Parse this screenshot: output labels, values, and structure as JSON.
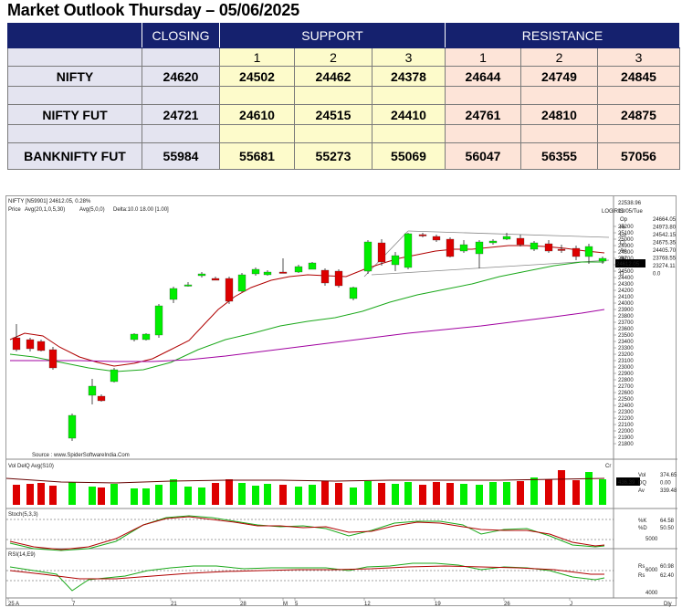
{
  "title": "Market Outlook Thursday – 05/06/2025",
  "table": {
    "headers": {
      "closing": "CLOSING",
      "support": "SUPPORT",
      "resistance": "RESISTANCE"
    },
    "level_numbers": [
      "1",
      "2",
      "3"
    ],
    "rows": [
      {
        "name": "NIFTY",
        "closing": "24620",
        "support": [
          "24502",
          "24462",
          "24378"
        ],
        "resistance": [
          "24644",
          "24749",
          "24845"
        ]
      },
      {
        "name": "NIFTY FUT",
        "closing": "24721",
        "support": [
          "24610",
          "24515",
          "24410"
        ],
        "resistance": [
          "24761",
          "24810",
          "24875"
        ]
      },
      {
        "name": "BANKNIFTY FUT",
        "closing": "55984",
        "support": [
          "55681",
          "55273",
          "55069"
        ],
        "resistance": [
          "56047",
          "56355",
          "57056"
        ]
      }
    ]
  },
  "chart": {
    "header_line1": "NIFTY [N59901] 24612.05, 0.28%",
    "header_line2_price": "Price",
    "header_line2_avg1": "Avg(20,1,0,5,30)",
    "header_line2_avg2": "Avg(5,0,0)",
    "header_line2_delta": "Delta:10.0 18.00 [1.00]",
    "log_label": "LOG",
    "irs_label": "IRIS",
    "top_right_value": "22538.96",
    "top_right_date": "13/05/Tue",
    "ohlc": [
      {
        "label": "Op",
        "value": "24664.05",
        "color": "#1aa81a"
      },
      {
        "label": "Hi",
        "value": "24973.80",
        "color": "#d00000"
      },
      {
        "label": "Lo",
        "value": "24542.15",
        "color": "#999999"
      },
      {
        "label": "Cl",
        "value": "24675.35",
        "color": "#999999"
      },
      {
        "label": "Av",
        "value": "24405.70",
        "color": "#d00000"
      },
      {
        "label": "Av",
        "value": "23768.55",
        "color": "#1aa81a"
      },
      {
        "label": "Av",
        "value": "23274.11",
        "color": "#cc00cc"
      },
      {
        "label": "D",
        "value": "0.0",
        "color": "#999999"
      }
    ],
    "last_price_tag": "24612.05",
    "price_axis": [
      "25200",
      "25100",
      "25000",
      "24900",
      "24800",
      "24700",
      "24600",
      "24500",
      "24400",
      "24300",
      "24200",
      "24100",
      "24000",
      "23900",
      "23800",
      "23700",
      "23600",
      "23500",
      "23400",
      "23300",
      "23200",
      "23100",
      "23000",
      "22900",
      "22800",
      "22700",
      "22600",
      "22500",
      "22400",
      "22300",
      "22200",
      "22100",
      "22000",
      "21900",
      "21800"
    ],
    "source": "Source : www.SpiderSoftwareIndia.Com",
    "vol_label": "Vol",
    "vol_label2": "DelQ",
    "vol_label3": "Avg(S10)",
    "vol_cr": "Cr",
    "vol_tag": "436.39",
    "vol_readout": [
      {
        "label": "Vol",
        "value": "374.65",
        "color": "#1aa81a"
      },
      {
        "label": "DQ",
        "value": "0.00",
        "color": "#000000"
      },
      {
        "label": "Av",
        "value": "339.48",
        "color": "#1aa81a"
      }
    ],
    "stoch_label": "Stoch(5,3,3)",
    "stoch_readout": [
      {
        "label": "%K",
        "value": "64.58",
        "color": "#1aa81a"
      },
      {
        "label": "%D",
        "value": "50.50",
        "color": "#d00000"
      }
    ],
    "stoch_axis": "5000",
    "rsi_label": "RSI(14,E9)",
    "rsi_readout": [
      {
        "label": "Rs",
        "value": "60.98",
        "color": "#1aa81a"
      },
      {
        "label": "Rs",
        "value": "62.40",
        "color": "#d00000"
      }
    ],
    "rsi_axis": [
      "6000",
      "4000"
    ],
    "x_labels": [
      "25 A",
      "7",
      "21",
      "28",
      "M",
      "5",
      "12",
      "19",
      "26",
      "J"
    ],
    "x_unit": "Dly",
    "colors": {
      "up": "#00ee00",
      "down": "#dd0000",
      "sma_short": "#b00000",
      "sma_mid": "#1aa81a",
      "sma_long": "#a000a0"
    }
  }
}
